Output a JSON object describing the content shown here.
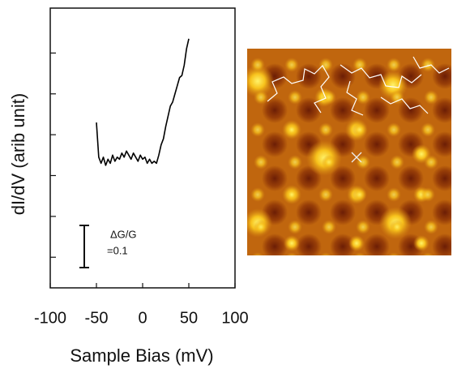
{
  "chart_data": {
    "type": "line",
    "xlabel": "Sample Bias (mV)",
    "ylabel": "dI/dV (arib unit)",
    "x": [
      -50,
      -47.5,
      -45,
      -42.5,
      -40,
      -37.5,
      -35,
      -32.5,
      -30,
      -27.5,
      -25,
      -22.5,
      -20,
      -17.5,
      -15,
      -12.5,
      -10,
      -7.5,
      -5,
      -2.5,
      0,
      2.5,
      5,
      7.5,
      10,
      12.5,
      15,
      17.5,
      20,
      22.5,
      25,
      27.5,
      30,
      32.5,
      35,
      37.5,
      40,
      42.5,
      45,
      47.5,
      50
    ],
    "series": [
      {
        "color": "#000000",
        "values": [
          3.3,
          2.45,
          2.3,
          2.45,
          2.25,
          2.4,
          2.3,
          2.5,
          2.35,
          2.45,
          2.4,
          2.55,
          2.45,
          2.6,
          2.5,
          2.4,
          2.55,
          2.45,
          2.35,
          2.5,
          2.4,
          2.45,
          2.3,
          2.4,
          2.3,
          2.35,
          2.3,
          2.5,
          2.75,
          2.9,
          3.2,
          3.45,
          3.7,
          3.8,
          4.0,
          4.2,
          4.4,
          4.45,
          4.7,
          5.1,
          5.35
        ]
      }
    ],
    "xlim": [
      -100,
      100
    ],
    "xticks": [
      -100,
      -50,
      0,
      50,
      100
    ],
    "ylim": [
      -0.75,
      6.1
    ],
    "yticks": [
      0,
      1,
      2,
      3,
      4,
      5
    ],
    "ytick_labels": false,
    "annotation": {
      "line1": "ΔG/G",
      "line2": "=0.1"
    }
  }
}
